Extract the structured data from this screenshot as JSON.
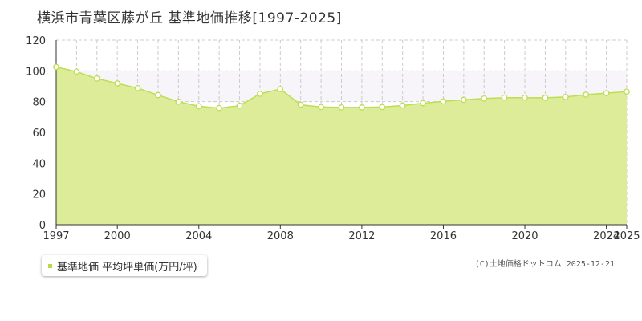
{
  "title": "横浜市青葉区藤が丘 基準地価推移[1997-2025]",
  "legend_label": "基準地価 平均坪単価(万円/坪)",
  "copyright": "(C)土地価格ドットコム 2025-12-21",
  "colors": {
    "area_fill": "#dcec98",
    "line": "#bcde52",
    "marker_fill": "#ffffff",
    "marker_stroke": "#bcde52",
    "band_fill": "#f7f5fa",
    "grid": "#cccccc",
    "axis": "#333333"
  },
  "chart_data": {
    "type": "area",
    "x": [
      1997,
      1998,
      1999,
      2000,
      2001,
      2002,
      2003,
      2004,
      2005,
      2006,
      2007,
      2008,
      2009,
      2010,
      2011,
      2012,
      2013,
      2014,
      2015,
      2016,
      2017,
      2018,
      2019,
      2020,
      2021,
      2022,
      2023,
      2024,
      2025
    ],
    "series": [
      {
        "name": "基準地価 平均坪単価(万円/坪)",
        "values": [
          102.5,
          99.5,
          95,
          91.8,
          88.8,
          84.2,
          80,
          77,
          75.8,
          77.4,
          85.1,
          88.2,
          78,
          76.5,
          76.2,
          76.2,
          76.5,
          77.5,
          79,
          80.2,
          81.2,
          82,
          82.6,
          82.6,
          82.5,
          83,
          84.5,
          85.5,
          86.5
        ]
      }
    ],
    "xticks": [
      1997,
      2000,
      2004,
      2008,
      2012,
      2016,
      2020,
      2024,
      2025
    ],
    "xtick_labels": [
      "1997",
      "2000",
      "2004",
      "2008",
      "2012",
      "2016",
      "2020",
      "2024",
      "2025"
    ],
    "yticks": [
      0,
      20,
      40,
      60,
      80,
      100,
      120
    ],
    "ytick_labels": [
      "0",
      "20",
      "40",
      "60",
      "80",
      "100",
      "120"
    ],
    "xlim": [
      1997,
      2025
    ],
    "ylim": [
      0,
      120
    ],
    "highlight_band": [
      80,
      100
    ],
    "grid": true,
    "legend_position": "bottom-left"
  }
}
